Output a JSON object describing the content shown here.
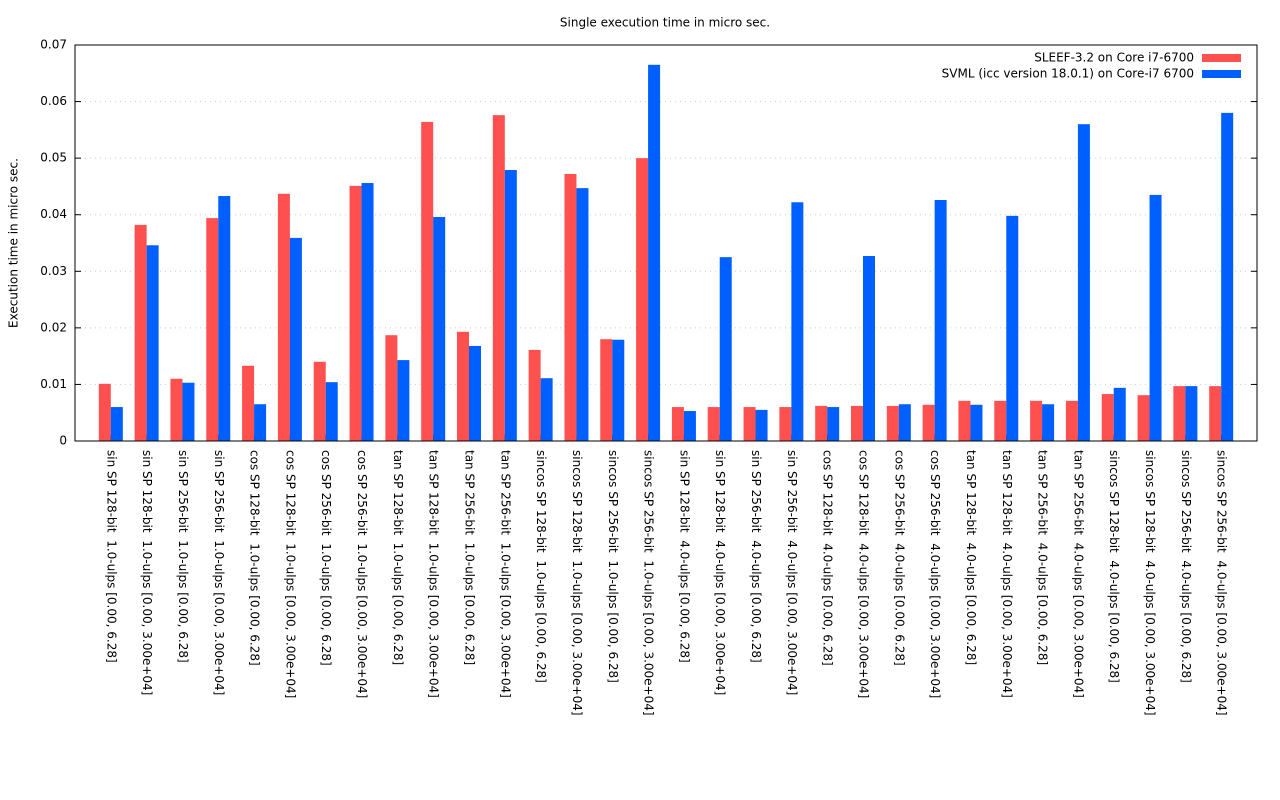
{
  "chart_data": {
    "type": "bar",
    "title": "Single execution time in micro sec.",
    "y_label": "Execution time in micro sec.",
    "categories": [
      "sin SP 128-bit  1.0-ulps [0.00, 6.28]",
      "sin SP 128-bit  1.0-ulps [0.00, 3.00e+04]",
      "sin SP 256-bit  1.0-ulps [0.00, 6.28]",
      "sin SP 256-bit  1.0-ulps [0.00, 3.00e+04]",
      "cos SP 128-bit  1.0-ulps [0.00, 6.28]",
      "cos SP 128-bit  1.0-ulps [0.00, 3.00e+04]",
      "cos SP 256-bit  1.0-ulps [0.00, 6.28]",
      "cos SP 256-bit  1.0-ulps [0.00, 3.00e+04]",
      "tan SP 128-bit  1.0-ulps [0.00, 6.28]",
      "tan SP 128-bit  1.0-ulps [0.00, 3.00e+04]",
      "tan SP 256-bit  1.0-ulps [0.00, 6.28]",
      "tan SP 256-bit  1.0-ulps [0.00, 3.00e+04]",
      "sincos SP 128-bit  1.0-ulps [0.00, 6.28]",
      "sincos SP 128-bit  1.0-ulps [0.00, 3.00e+04]",
      "sincos SP 256-bit  1.0-ulps [0.00, 6.28]",
      "sincos SP 256-bit  1.0-ulps [0.00, 3.00e+04]",
      "sin SP 128-bit  4.0-ulps [0.00, 6.28]",
      "sin SP 128-bit  4.0-ulps [0.00, 3.00e+04]",
      "sin SP 256-bit  4.0-ulps [0.00, 6.28]",
      "sin SP 256-bit  4.0-ulps [0.00, 3.00e+04]",
      "cos SP 128-bit  4.0-ulps [0.00, 6.28]",
      "cos SP 128-bit  4.0-ulps [0.00, 3.00e+04]",
      "cos SP 256-bit  4.0-ulps [0.00, 6.28]",
      "cos SP 256-bit  4.0-ulps [0.00, 3.00e+04]",
      "tan SP 128-bit  4.0-ulps [0.00, 6.28]",
      "tan SP 128-bit  4.0-ulps [0.00, 3.00e+04]",
      "tan SP 256-bit  4.0-ulps [0.00, 6.28]",
      "tan SP 256-bit  4.0-ulps [0.00, 3.00e+04]",
      "sincos SP 128-bit  4.0-ulps [0.00, 6.28]",
      "sincos SP 128-bit  4.0-ulps [0.00, 3.00e+04]",
      "sincos SP 256-bit  4.0-ulps [0.00, 6.28]",
      "sincos SP 256-bit  4.0-ulps [0.00, 3.00e+04]"
    ],
    "series": [
      {
        "name": "SLEEF-3.2 on Core i7-6700",
        "color": "#ff5050",
        "values": [
          0.0101,
          0.0382,
          0.011,
          0.0394,
          0.0133,
          0.0437,
          0.014,
          0.0451,
          0.0187,
          0.0564,
          0.0193,
          0.0576,
          0.0161,
          0.0472,
          0.018,
          0.05,
          0.006,
          0.006,
          0.006,
          0.006,
          0.0062,
          0.0062,
          0.0062,
          0.0064,
          0.0071,
          0.0071,
          0.0071,
          0.0071,
          0.0083,
          0.0081,
          0.0097,
          0.0097
        ]
      },
      {
        "name": "SVML (icc version 18.0.1) on Core-i7 6700",
        "color": "#0060ff",
        "values": [
          0.006,
          0.0346,
          0.0103,
          0.0433,
          0.0065,
          0.0359,
          0.0104,
          0.0456,
          0.0143,
          0.0396,
          0.0168,
          0.0479,
          0.0111,
          0.0447,
          0.0179,
          0.0665,
          0.0053,
          0.0325,
          0.0055,
          0.0422,
          0.006,
          0.0327,
          0.0065,
          0.0426,
          0.0064,
          0.0398,
          0.0065,
          0.056,
          0.0094,
          0.0435,
          0.0097,
          0.058
        ]
      }
    ],
    "ylim": [
      0,
      0.07
    ],
    "yticks": [
      0,
      0.01,
      0.02,
      0.03,
      0.04,
      0.05,
      0.06,
      0.07
    ],
    "grid": true,
    "legend": "top-right"
  }
}
